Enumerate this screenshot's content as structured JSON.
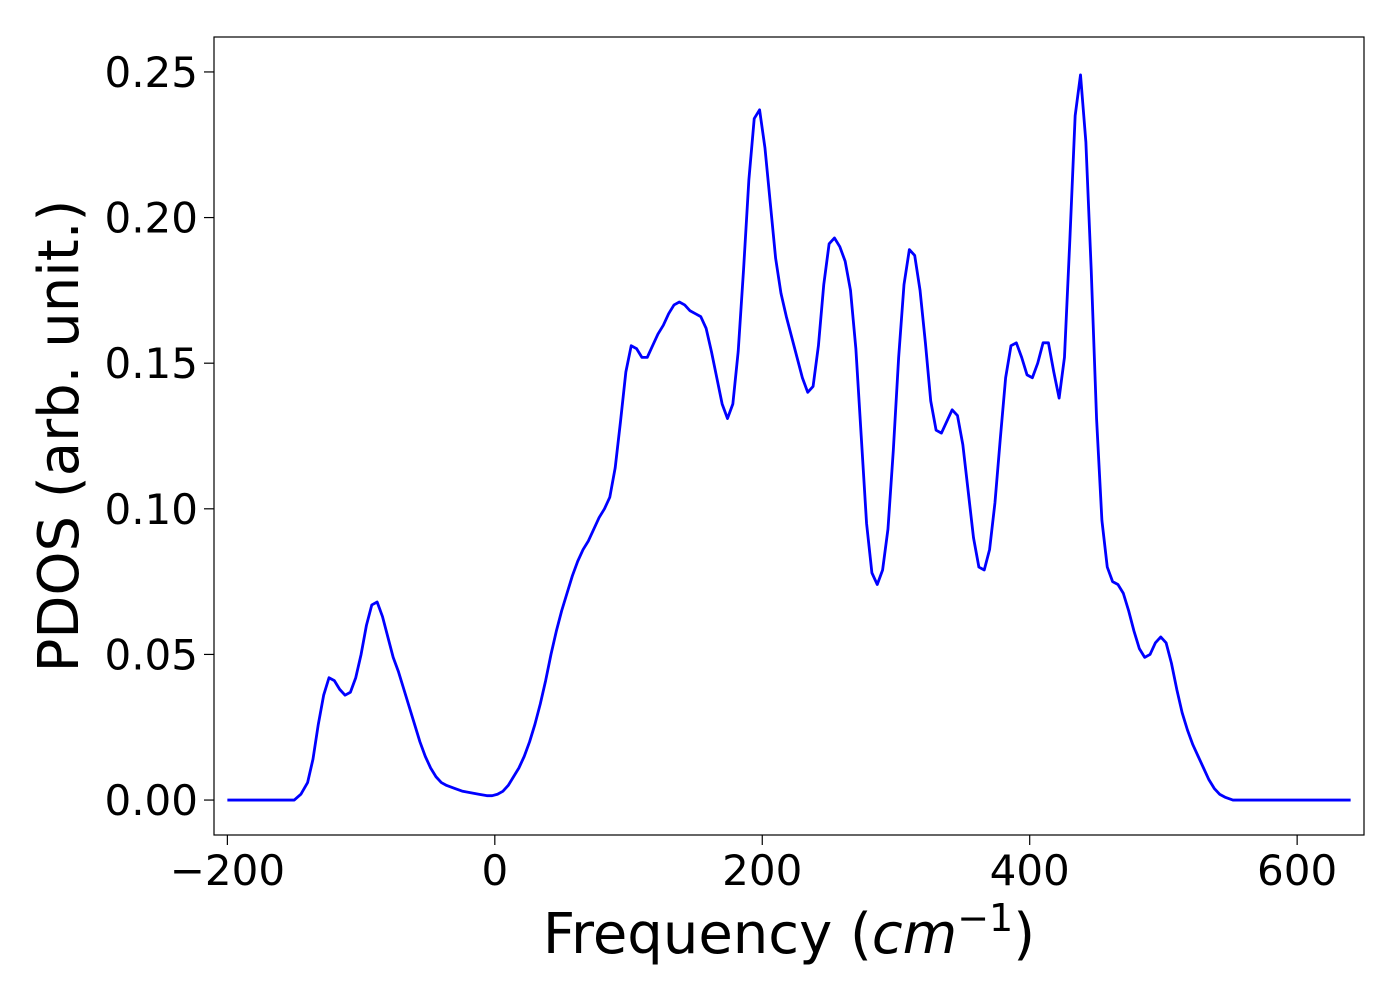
{
  "chart_data": {
    "type": "line",
    "title": "",
    "xlabel": {
      "prefix": "Frequency (",
      "math": "cm",
      "superscript": "−1",
      "suffix": ")"
    },
    "ylabel": "PDOS (arb. unit.)",
    "xlim": [
      -210,
      650
    ],
    "ylim": [
      -0.012,
      0.262
    ],
    "xticks": [
      -200,
      0,
      200,
      400,
      600
    ],
    "xtick_labels": [
      "−200",
      "0",
      "200",
      "400",
      "600"
    ],
    "yticks": [
      0.0,
      0.05,
      0.1,
      0.15,
      0.2,
      0.25
    ],
    "ytick_labels": [
      "0.00",
      "0.05",
      "0.10",
      "0.15",
      "0.20",
      "0.25"
    ],
    "grid": false,
    "legend": "none",
    "series": [
      {
        "color": "#0000ff",
        "points": [
          [
            -200,
            0.0
          ],
          [
            -160,
            0.0
          ],
          [
            -150,
            0.0
          ],
          [
            -145,
            0.002
          ],
          [
            -140,
            0.006
          ],
          [
            -136,
            0.014
          ],
          [
            -132,
            0.026
          ],
          [
            -128,
            0.036
          ],
          [
            -124,
            0.042
          ],
          [
            -120,
            0.041
          ],
          [
            -116,
            0.038
          ],
          [
            -112,
            0.036
          ],
          [
            -108,
            0.037
          ],
          [
            -104,
            0.042
          ],
          [
            -100,
            0.05
          ],
          [
            -96,
            0.06
          ],
          [
            -92,
            0.067
          ],
          [
            -88,
            0.068
          ],
          [
            -84,
            0.063
          ],
          [
            -80,
            0.056
          ],
          [
            -76,
            0.049
          ],
          [
            -72,
            0.044
          ],
          [
            -68,
            0.038
          ],
          [
            -64,
            0.032
          ],
          [
            -60,
            0.026
          ],
          [
            -56,
            0.02
          ],
          [
            -52,
            0.015
          ],
          [
            -48,
            0.011
          ],
          [
            -44,
            0.008
          ],
          [
            -40,
            0.006
          ],
          [
            -36,
            0.005
          ],
          [
            -30,
            0.004
          ],
          [
            -24,
            0.003
          ],
          [
            -18,
            0.0025
          ],
          [
            -12,
            0.002
          ],
          [
            -6,
            0.0015
          ],
          [
            -2,
            0.0015
          ],
          [
            2,
            0.002
          ],
          [
            6,
            0.003
          ],
          [
            10,
            0.005
          ],
          [
            14,
            0.008
          ],
          [
            18,
            0.011
          ],
          [
            22,
            0.015
          ],
          [
            26,
            0.02
          ],
          [
            30,
            0.026
          ],
          [
            34,
            0.033
          ],
          [
            38,
            0.041
          ],
          [
            42,
            0.05
          ],
          [
            46,
            0.058
          ],
          [
            50,
            0.065
          ],
          [
            54,
            0.071
          ],
          [
            58,
            0.077
          ],
          [
            62,
            0.082
          ],
          [
            66,
            0.086
          ],
          [
            70,
            0.089
          ],
          [
            74,
            0.093
          ],
          [
            78,
            0.097
          ],
          [
            82,
            0.1
          ],
          [
            86,
            0.104
          ],
          [
            90,
            0.114
          ],
          [
            94,
            0.13
          ],
          [
            98,
            0.147
          ],
          [
            102,
            0.156
          ],
          [
            106,
            0.155
          ],
          [
            110,
            0.152
          ],
          [
            114,
            0.152
          ],
          [
            118,
            0.156
          ],
          [
            122,
            0.16
          ],
          [
            126,
            0.163
          ],
          [
            130,
            0.167
          ],
          [
            134,
            0.17
          ],
          [
            138,
            0.171
          ],
          [
            142,
            0.17
          ],
          [
            146,
            0.168
          ],
          [
            150,
            0.167
          ],
          [
            154,
            0.166
          ],
          [
            158,
            0.162
          ],
          [
            162,
            0.154
          ],
          [
            166,
            0.145
          ],
          [
            170,
            0.136
          ],
          [
            174,
            0.131
          ],
          [
            178,
            0.136
          ],
          [
            182,
            0.154
          ],
          [
            186,
            0.182
          ],
          [
            190,
            0.213
          ],
          [
            194,
            0.234
          ],
          [
            198,
            0.237
          ],
          [
            202,
            0.224
          ],
          [
            206,
            0.205
          ],
          [
            210,
            0.186
          ],
          [
            214,
            0.174
          ],
          [
            218,
            0.166
          ],
          [
            222,
            0.159
          ],
          [
            226,
            0.152
          ],
          [
            230,
            0.145
          ],
          [
            234,
            0.14
          ],
          [
            238,
            0.142
          ],
          [
            242,
            0.156
          ],
          [
            246,
            0.177
          ],
          [
            250,
            0.191
          ],
          [
            254,
            0.193
          ],
          [
            258,
            0.19
          ],
          [
            262,
            0.185
          ],
          [
            266,
            0.175
          ],
          [
            270,
            0.155
          ],
          [
            274,
            0.125
          ],
          [
            278,
            0.095
          ],
          [
            282,
            0.078
          ],
          [
            286,
            0.074
          ],
          [
            290,
            0.079
          ],
          [
            294,
            0.093
          ],
          [
            298,
            0.12
          ],
          [
            302,
            0.152
          ],
          [
            306,
            0.177
          ],
          [
            310,
            0.189
          ],
          [
            314,
            0.187
          ],
          [
            318,
            0.175
          ],
          [
            322,
            0.157
          ],
          [
            326,
            0.137
          ],
          [
            330,
            0.127
          ],
          [
            334,
            0.126
          ],
          [
            338,
            0.13
          ],
          [
            342,
            0.134
          ],
          [
            346,
            0.132
          ],
          [
            350,
            0.122
          ],
          [
            354,
            0.106
          ],
          [
            358,
            0.09
          ],
          [
            362,
            0.08
          ],
          [
            366,
            0.079
          ],
          [
            370,
            0.086
          ],
          [
            374,
            0.102
          ],
          [
            378,
            0.124
          ],
          [
            382,
            0.145
          ],
          [
            386,
            0.156
          ],
          [
            390,
            0.157
          ],
          [
            394,
            0.152
          ],
          [
            398,
            0.146
          ],
          [
            402,
            0.145
          ],
          [
            406,
            0.15
          ],
          [
            410,
            0.157
          ],
          [
            414,
            0.157
          ],
          [
            418,
            0.147
          ],
          [
            422,
            0.138
          ],
          [
            426,
            0.152
          ],
          [
            430,
            0.192
          ],
          [
            434,
            0.235
          ],
          [
            438,
            0.249
          ],
          [
            442,
            0.226
          ],
          [
            446,
            0.182
          ],
          [
            450,
            0.131
          ],
          [
            454,
            0.096
          ],
          [
            458,
            0.08
          ],
          [
            462,
            0.075
          ],
          [
            466,
            0.074
          ],
          [
            470,
            0.071
          ],
          [
            474,
            0.065
          ],
          [
            478,
            0.058
          ],
          [
            482,
            0.052
          ],
          [
            486,
            0.049
          ],
          [
            490,
            0.05
          ],
          [
            494,
            0.054
          ],
          [
            498,
            0.056
          ],
          [
            502,
            0.054
          ],
          [
            506,
            0.047
          ],
          [
            510,
            0.038
          ],
          [
            514,
            0.03
          ],
          [
            518,
            0.024
          ],
          [
            522,
            0.019
          ],
          [
            526,
            0.015
          ],
          [
            530,
            0.011
          ],
          [
            534,
            0.007
          ],
          [
            538,
            0.004
          ],
          [
            542,
            0.002
          ],
          [
            546,
            0.001
          ],
          [
            552,
            0.0
          ],
          [
            600,
            0.0
          ],
          [
            640,
            0.0
          ]
        ]
      }
    ]
  }
}
